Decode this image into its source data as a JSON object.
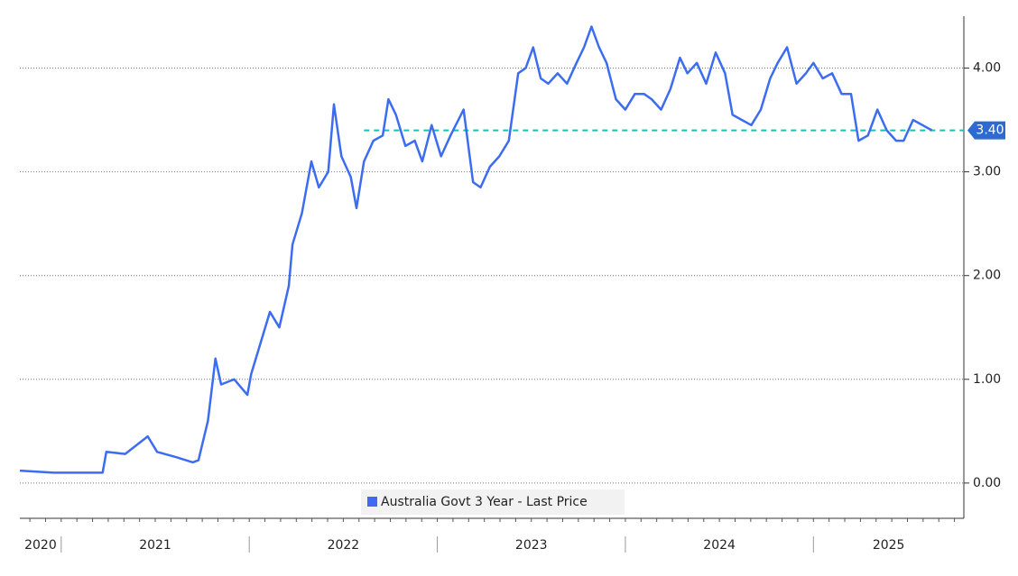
{
  "chart_data": {
    "type": "line",
    "x": [
      2020.78,
      2020.96,
      2021.15,
      2021.22,
      2021.24,
      2021.34,
      2021.46,
      2021.51,
      2021.61,
      2021.7,
      2021.73,
      2021.78,
      2021.82,
      2021.85,
      2021.92,
      2021.99,
      2022.01,
      2022.06,
      2022.11,
      2022.16,
      2022.21,
      2022.23,
      2022.28,
      2022.33,
      2022.37,
      2022.42,
      2022.45,
      2022.49,
      2022.54,
      2022.57,
      2022.61,
      2022.66,
      2022.71,
      2022.74,
      2022.78,
      2022.83,
      2022.88,
      2022.92,
      2022.97,
      2023.02,
      2023.07,
      2023.14,
      2023.19,
      2023.23,
      2023.28,
      2023.33,
      2023.38,
      2023.43,
      2023.47,
      2023.51,
      2023.55,
      2023.59,
      2023.64,
      2023.69,
      2023.74,
      2023.78,
      2023.82,
      2023.86,
      2023.9,
      2023.95,
      2024.0,
      2024.05,
      2024.1,
      2024.14,
      2024.19,
      2024.24,
      2024.29,
      2024.33,
      2024.38,
      2024.43,
      2024.48,
      2024.53,
      2024.57,
      2024.62,
      2024.67,
      2024.72,
      2024.77,
      2024.81,
      2024.86,
      2024.91,
      2024.96,
      2025.0,
      2025.05,
      2025.1,
      2025.15,
      2025.2,
      2025.24,
      2025.29,
      2025.34,
      2025.39,
      2025.44,
      2025.48,
      2025.53,
      2025.58,
      2025.63
    ],
    "series": [
      {
        "name": "Australia Govt 3 Year - Last Price",
        "color": "#3c6cf0",
        "values": [
          0.12,
          0.1,
          0.1,
          0.1,
          0.3,
          0.28,
          0.45,
          0.3,
          0.25,
          0.2,
          0.22,
          0.6,
          1.2,
          0.95,
          1.0,
          0.85,
          1.05,
          1.35,
          1.65,
          1.5,
          1.9,
          2.3,
          2.6,
          3.1,
          2.85,
          3.0,
          3.65,
          3.15,
          2.95,
          2.65,
          3.1,
          3.3,
          3.35,
          3.7,
          3.55,
          3.25,
          3.3,
          3.1,
          3.45,
          3.15,
          3.35,
          3.6,
          2.9,
          2.85,
          3.05,
          3.15,
          3.3,
          3.95,
          4.0,
          4.2,
          3.9,
          3.85,
          3.95,
          3.85,
          4.05,
          4.2,
          4.4,
          4.2,
          4.05,
          3.7,
          3.6,
          3.75,
          3.75,
          3.7,
          3.6,
          3.8,
          4.1,
          3.95,
          4.05,
          3.85,
          4.15,
          3.95,
          3.55,
          3.5,
          3.45,
          3.6,
          3.9,
          4.05,
          4.2,
          3.85,
          3.95,
          4.05,
          3.9,
          3.95,
          3.75,
          3.75,
          3.3,
          3.35,
          3.6,
          3.4,
          3.3,
          3.3,
          3.5,
          3.45,
          3.4
        ]
      }
    ],
    "xlim": [
      2020.78,
      2025.8
    ],
    "xticks": [
      2020,
      2021,
      2022,
      2023,
      2024,
      2025
    ],
    "ylim": [
      -0.34,
      4.5
    ],
    "yticks": [
      {
        "value": 0,
        "label": "0.00"
      },
      {
        "value": 1,
        "label": "1.00"
      },
      {
        "value": 2,
        "label": "2.00"
      },
      {
        "value": 3,
        "label": "3.00"
      },
      {
        "value": 4,
        "label": "4.00"
      }
    ],
    "grid": true,
    "reference_line": {
      "value": 3.4,
      "label": "3.40",
      "x_start": 2022.61,
      "color": "#1fbfb0"
    }
  }
}
